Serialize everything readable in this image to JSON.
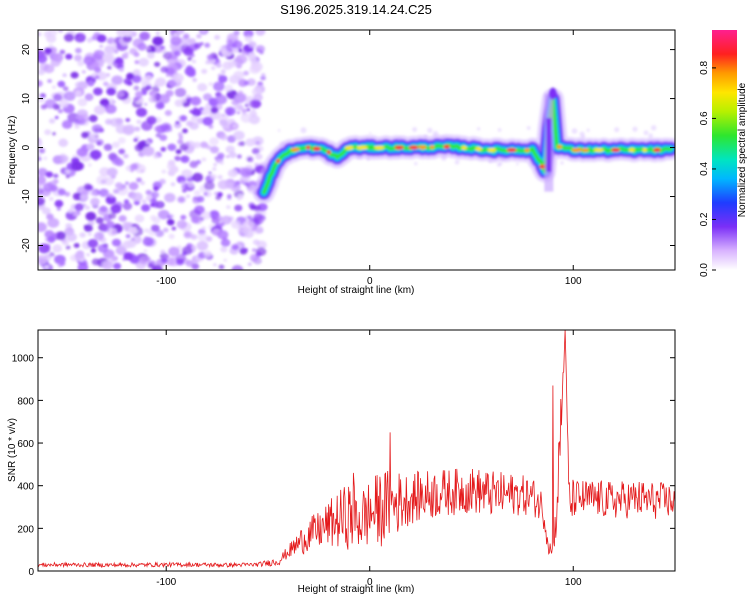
{
  "title": "S196.2025.319.14.24.C25",
  "chart_data": [
    {
      "type": "heatmap",
      "xlabel": "Height of straight line (km)",
      "ylabel": "Frequency (Hz)",
      "xlim": [
        -163,
        150
      ],
      "ylim": [
        -25,
        24
      ],
      "xticks": [
        -100,
        0,
        100
      ],
      "yticks": [
        -20,
        -10,
        0,
        10,
        20
      ],
      "noise_region_x": [
        -163,
        -52
      ],
      "ridge": {
        "description_points_x": [
          -52,
          -48,
          -44,
          -38,
          -30,
          -22,
          -16,
          -10,
          0,
          20,
          40,
          60,
          80,
          84,
          86,
          88,
          90,
          92,
          100,
          120,
          150
        ],
        "description_points_f": [
          -9,
          -5,
          -2,
          -0.5,
          0,
          -0.5,
          -2,
          0,
          0,
          0,
          0.2,
          -0.5,
          -0.5,
          -3,
          -5,
          4,
          10,
          0.3,
          -0.5,
          -0.5,
          -0.5
        ]
      },
      "colorbar": {
        "label": "Normalized spectral amplitude",
        "range": [
          0,
          0.95
        ],
        "ticks": [
          0,
          0.2,
          0.4,
          0.6,
          0.8
        ],
        "tick_labels": [
          "0.0",
          "0.2",
          "0.4",
          "0.6",
          "0.8"
        ]
      }
    },
    {
      "type": "line",
      "xlabel": "Height of straight line (km)",
      "ylabel": "SNR (10 * v/v)",
      "xlim": [
        -163,
        150
      ],
      "ylim": [
        0,
        1130
      ],
      "xticks": [
        -100,
        0,
        100
      ],
      "yticks": [
        0,
        200,
        400,
        600,
        800,
        1000
      ],
      "series": [
        {
          "name": "SNR",
          "color": "#e41a1c",
          "x": [
            -163,
            -150,
            -130,
            -110,
            -90,
            -70,
            -55,
            -45,
            -40,
            -35,
            -30,
            -25,
            -20,
            -15,
            -10,
            -5,
            0,
            5,
            10,
            20,
            30,
            40,
            50,
            60,
            70,
            80,
            85,
            88,
            90,
            92,
            94,
            96,
            98,
            100,
            110,
            120,
            130,
            140,
            150
          ],
          "values": [
            28,
            30,
            28,
            29,
            30,
            28,
            30,
            45,
            90,
            130,
            170,
            190,
            220,
            240,
            260,
            240,
            270,
            290,
            310,
            340,
            360,
            370,
            380,
            360,
            360,
            350,
            300,
            120,
            80,
            300,
            700,
            1120,
            300,
            340,
            340,
            330,
            340,
            330,
            330
          ],
          "noise_amplitude": [
            10,
            10,
            10,
            10,
            10,
            10,
            10,
            20,
            30,
            60,
            80,
            90,
            110,
            140,
            160,
            150,
            160,
            180,
            170,
            120,
            120,
            110,
            110,
            110,
            100,
            90,
            80,
            50,
            30,
            120,
            200,
            20,
            150,
            90,
            90,
            90,
            90,
            90,
            80
          ]
        }
      ],
      "annotated_peaks": [
        {
          "x": -8,
          "y": 460
        },
        {
          "x": 10,
          "y": 650
        },
        {
          "x": 90,
          "y": 870
        },
        {
          "x": 96,
          "y": 1130
        }
      ]
    }
  ]
}
